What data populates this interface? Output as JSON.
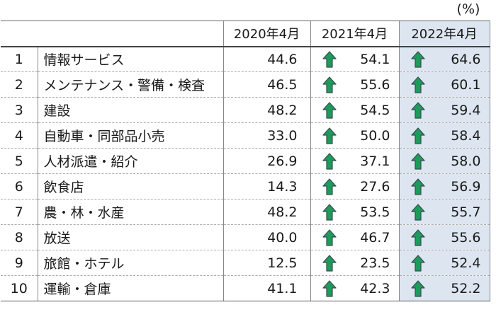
{
  "unit_label": "(%)",
  "columns": [
    "2020年4月",
    "2021年4月",
    "2022年4月"
  ],
  "colors": {
    "arrow_fill": "#1e9a5a",
    "arrow_outline": "#3a4a55",
    "highlight_column": "#dde6f0"
  },
  "chart_data": {
    "type": "table",
    "title": "",
    "unit": "(%)",
    "columns": [
      "2020年4月",
      "2021年4月",
      "2022年4月"
    ],
    "rows": [
      {
        "rank": "1",
        "name": "情報サービス",
        "v2020": "44.6",
        "v2021": "54.1",
        "v2022": "64.6",
        "up2021": true,
        "up2022": true
      },
      {
        "rank": "2",
        "name": "メンテナンス・警備・検査",
        "v2020": "46.5",
        "v2021": "55.6",
        "v2022": "60.1",
        "up2021": true,
        "up2022": true
      },
      {
        "rank": "3",
        "name": "建設",
        "v2020": "48.2",
        "v2021": "54.5",
        "v2022": "59.4",
        "up2021": true,
        "up2022": true
      },
      {
        "rank": "4",
        "name": "自動車・同部品小売",
        "v2020": "33.0",
        "v2021": "50.0",
        "v2022": "58.4",
        "up2021": true,
        "up2022": true
      },
      {
        "rank": "5",
        "name": "人材派遣・紹介",
        "v2020": "26.9",
        "v2021": "37.1",
        "v2022": "58.0",
        "up2021": true,
        "up2022": true
      },
      {
        "rank": "6",
        "name": "飲食店",
        "v2020": "14.3",
        "v2021": "27.6",
        "v2022": "56.9",
        "up2021": true,
        "up2022": true
      },
      {
        "rank": "7",
        "name": "農・林・水産",
        "v2020": "48.2",
        "v2021": "53.5",
        "v2022": "55.7",
        "up2021": true,
        "up2022": true
      },
      {
        "rank": "8",
        "name": "放送",
        "v2020": "40.0",
        "v2021": "46.7",
        "v2022": "55.6",
        "up2021": true,
        "up2022": true
      },
      {
        "rank": "9",
        "name": "旅館・ホテル",
        "v2020": "12.5",
        "v2021": "23.5",
        "v2022": "52.4",
        "up2021": true,
        "up2022": true
      },
      {
        "rank": "10",
        "name": "運輸・倉庫",
        "v2020": "41.1",
        "v2021": "42.3",
        "v2022": "52.2",
        "up2021": true,
        "up2022": true
      }
    ]
  }
}
